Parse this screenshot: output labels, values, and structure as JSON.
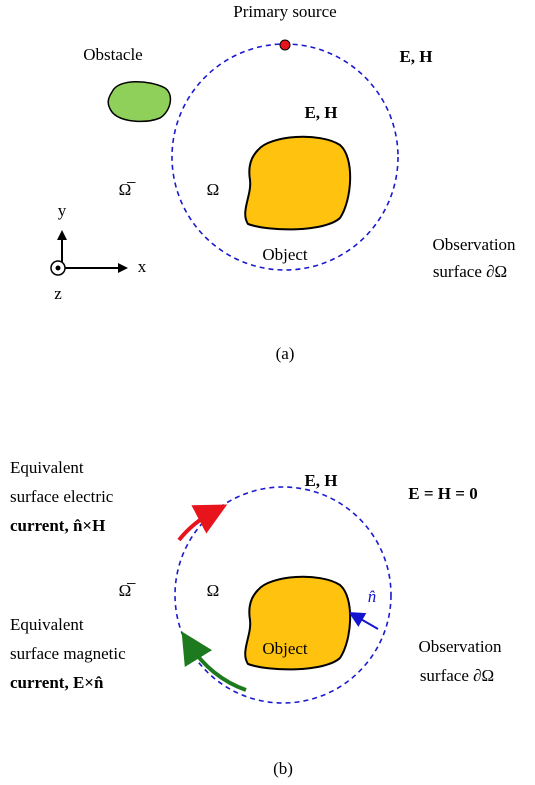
{
  "panel_a": {
    "primary_source": "Primary source",
    "obstacle": "Obstacle",
    "fields_outer": "E, H",
    "fields_inner": "E, H",
    "exterior": "Ω̅",
    "interior": "Ω",
    "object": "Object",
    "observation": [
      "Observation",
      "surface ∂Ω"
    ],
    "axes": {
      "y": "y",
      "x": "x",
      "z": "z"
    },
    "caption": "(a)"
  },
  "panel_b": {
    "electric_current": [
      "Equivalent",
      "surface electric",
      "current, n̂×H"
    ],
    "fields_outer": "E = H = 0",
    "fields_inner": "E, H",
    "exterior": "Ω̅",
    "interior": "Ω",
    "normal": "n̂",
    "object": "Object",
    "observation": [
      "Observation",
      "surface ∂Ω"
    ],
    "magnetic_current": [
      "Equivalent",
      "surface magnetic",
      "current, E×n̂"
    ],
    "caption": "(b)"
  }
}
